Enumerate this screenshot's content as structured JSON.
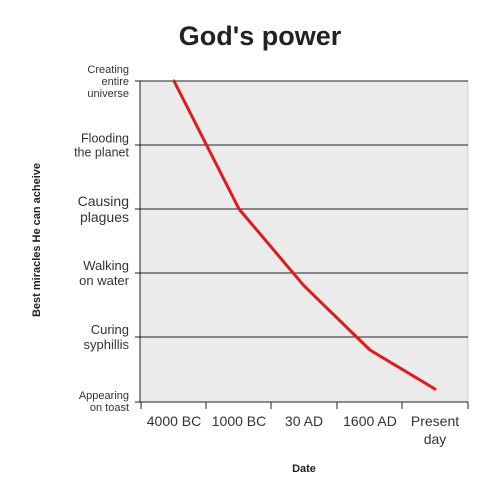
{
  "chart_data": {
    "type": "line",
    "title": "God's power",
    "xlabel": "Date",
    "ylabel": "Best miracles He can acheive",
    "categories": [
      "4000 BC",
      "1000 BC",
      "30 AD",
      "1600 AD",
      "Present day"
    ],
    "y_categories": [
      "Creating entire universe",
      "Flooding the planet",
      "Causing plagues",
      "Walking on water",
      "Curing syphillis",
      "Appearing on toast"
    ],
    "series": [
      {
        "x": [
          0,
          1,
          2,
          3,
          4
        ],
        "values": [
          5,
          3,
          1.8,
          0.8,
          0.2
        ]
      }
    ],
    "ylim": [
      0,
      5
    ],
    "grid": true,
    "colors": {
      "line": "#e01b1b",
      "plot_background": "#ebebeb",
      "grid": "#222222",
      "text": "#222222"
    }
  }
}
